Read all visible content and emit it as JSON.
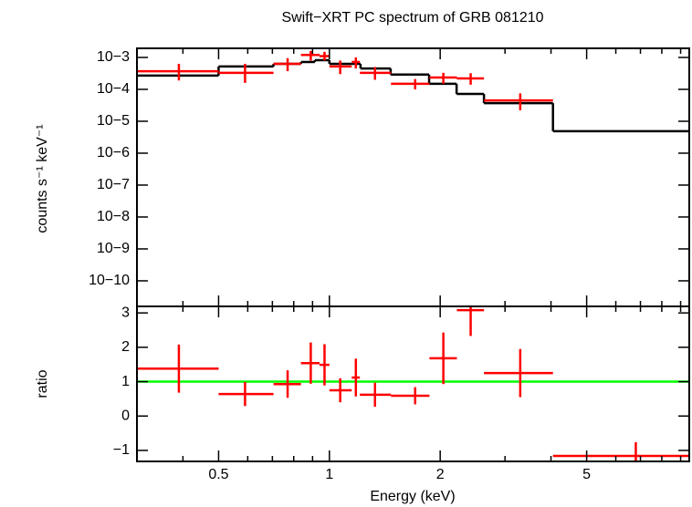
{
  "chart_data": [
    {
      "type": "errorbar",
      "title": "Swift−XRT PC spectrum of GRB 081210",
      "ylabel": "counts s⁻¹ keV⁻¹",
      "xscale": "log",
      "yscale": "log",
      "xlim": [
        0.3,
        9.5
      ],
      "xticks": [
        0.5,
        1,
        2,
        5
      ],
      "xminorticks": [
        0.3,
        0.4,
        0.6,
        0.7,
        0.8,
        0.9,
        3,
        4,
        6,
        7,
        8,
        9
      ],
      "ylim": [
        0.00193,
        1.58e-11
      ],
      "yticks": [
        {
          "value": 0.001,
          "label": "10−3"
        },
        {
          "value": 0.0001,
          "label": "10−4"
        },
        {
          "value": 1e-05,
          "label": "10−5"
        },
        {
          "value": 1e-06,
          "label": "10−6"
        },
        {
          "value": 1e-07,
          "label": "10−7"
        },
        {
          "value": 1e-08,
          "label": "10−8"
        },
        {
          "value": 1e-09,
          "label": "10−9"
        },
        {
          "value": 1e-10,
          "label": "10−10"
        }
      ],
      "color": "#ff0000",
      "x": [
        0.39,
        0.59,
        0.77,
        0.89,
        0.97,
        1.07,
        1.18,
        1.33,
        1.71,
        2.04,
        2.42,
        3.3,
        6.8
      ],
      "x_low": [
        0.3,
        0.5,
        0.705,
        0.837,
        0.94,
        1.0,
        1.15,
        1.21,
        1.47,
        1.87,
        2.22,
        2.63,
        4.05
      ],
      "x_high": [
        0.5,
        0.705,
        0.837,
        0.94,
        1.0,
        1.15,
        1.21,
        1.47,
        1.87,
        2.22,
        2.63,
        4.05,
        9.5
      ],
      "values": [
        0.00037,
        0.00033,
        0.00063,
        0.0012,
        0.0011,
        0.00052,
        0.00072,
        0.00033,
        0.00015,
        0.000235,
        0.00022,
        4.5e-05,
        null
      ],
      "y_low": [
        0.00019,
        0.00016,
        0.00037,
        0.0008,
        0.0008,
        0.0003,
        0.00045,
        0.0002,
        0.0001,
        0.00015,
        0.00014,
        2.2e-05,
        null
      ],
      "y_high": [
        0.00063,
        0.00063,
        0.00095,
        0.0016,
        0.0015,
        0.0008,
        0.001,
        0.0005,
        0.00021,
        0.00033,
        0.00032,
        7.5e-05,
        null
      ],
      "model": {
        "color": "#000000",
        "edges": [
          0.3,
          0.5,
          0.705,
          0.837,
          0.913,
          1.0,
          1.215,
          1.467,
          1.866,
          2.216,
          2.63,
          4.05,
          9.5
        ],
        "values": [
          0.00027,
          0.00052,
          0.00063,
          0.00072,
          0.00082,
          0.00063,
          0.00045,
          0.00029,
          0.00015,
          7.2e-05,
          3.7e-05,
          4.9e-06
        ]
      }
    },
    {
      "type": "errorbar",
      "xlabel": "Energy (keV)",
      "ylabel": "ratio",
      "xscale": "log",
      "xlim": [
        0.3,
        9.5
      ],
      "xticks": [
        0.5,
        1,
        2,
        5
      ],
      "xminorticks": [
        0.3,
        0.4,
        0.6,
        0.7,
        0.8,
        0.9,
        3,
        4,
        6,
        7,
        8,
        9
      ],
      "ylim": [
        -1.32,
        3.19
      ],
      "yticks": [
        {
          "value": -1,
          "label": "−1"
        },
        0,
        1,
        2,
        3
      ],
      "color": "#ff0000",
      "x": [
        0.39,
        0.59,
        0.77,
        0.89,
        0.97,
        1.07,
        1.18,
        1.33,
        1.71,
        2.04,
        2.42,
        3.3,
        6.8
      ],
      "x_low": [
        0.3,
        0.5,
        0.705,
        0.837,
        0.94,
        1.0,
        1.15,
        1.21,
        1.47,
        1.87,
        2.22,
        2.63,
        4.05
      ],
      "x_high": [
        0.5,
        0.705,
        0.837,
        0.94,
        1.0,
        1.15,
        1.21,
        1.47,
        1.87,
        2.22,
        2.63,
        4.05,
        9.5
      ],
      "values": [
        1.38,
        0.64,
        0.93,
        1.54,
        1.49,
        0.75,
        1.12,
        0.62,
        0.59,
        1.68,
        3.08,
        1.25,
        -1.16
      ],
      "errors": [
        0.7,
        0.35,
        0.4,
        0.6,
        0.6,
        0.35,
        0.55,
        0.35,
        0.25,
        0.75,
        0.75,
        0.7,
        0.4
      ],
      "hline": 1,
      "hline_color": "#00ff00"
    }
  ]
}
